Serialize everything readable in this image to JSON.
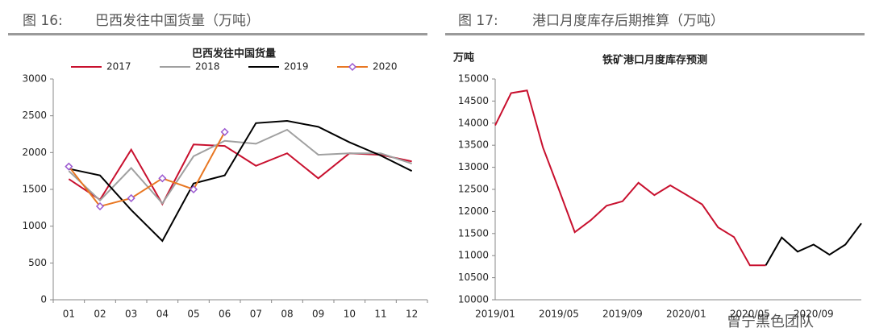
{
  "chart_data": [
    {
      "type": "line",
      "figure_label": "图 16:",
      "figure_title": "巴西发往中国货量（万吨）",
      "title": "巴西发往中国货量",
      "categories": [
        "01",
        "02",
        "03",
        "04",
        "05",
        "06",
        "07",
        "08",
        "09",
        "10",
        "11",
        "12"
      ],
      "series": [
        {
          "name": "2017",
          "color": "#c8102e",
          "values": [
            1640,
            1360,
            2040,
            1300,
            2110,
            2090,
            1820,
            1990,
            1650,
            1990,
            1970,
            1880
          ]
        },
        {
          "name": "2018",
          "color": "#a0a0a0",
          "values": [
            1750,
            1350,
            1790,
            1310,
            1950,
            2160,
            2120,
            2310,
            1970,
            1990,
            1990,
            1850
          ]
        },
        {
          "name": "2019",
          "color": "#000000",
          "values": [
            1780,
            1690,
            1220,
            800,
            1580,
            1690,
            2400,
            2430,
            2350,
            2140,
            1960,
            1750
          ]
        },
        {
          "name": "2020",
          "color": "#e87722",
          "marker_color": "#9b59d0",
          "values": [
            1810,
            1270,
            1380,
            1650,
            1500,
            2280,
            null,
            null,
            null,
            null,
            null,
            null
          ]
        }
      ],
      "ylim": [
        0,
        3000
      ],
      "yticks": [
        0,
        500,
        1000,
        1500,
        2000,
        2500,
        3000
      ],
      "legend": "top"
    },
    {
      "type": "line",
      "figure_label": "图 17:",
      "figure_title": "港口月度库存后期推算（万吨）",
      "title": "铁矿港口月度库存预测",
      "y_label": "万吨",
      "categories": [
        "2019/01",
        null,
        null,
        null,
        "2019/05",
        null,
        null,
        null,
        "2019/09",
        null,
        null,
        null,
        "2020/01",
        null,
        null,
        null,
        "2020/05",
        null,
        null,
        null,
        "2020/09",
        null,
        null,
        null
      ],
      "series": [
        {
          "color": "#c8102e",
          "values": [
            13950,
            14680,
            14740,
            13450,
            12500,
            11530,
            11800,
            12130,
            12230,
            12650,
            12370,
            12590,
            12380,
            12160,
            11640,
            11420,
            10780,
            10780,
            null,
            null,
            null,
            null,
            null,
            null
          ]
        },
        {
          "color": "#000000",
          "values": [
            null,
            null,
            null,
            null,
            null,
            null,
            null,
            null,
            null,
            null,
            null,
            null,
            null,
            null,
            null,
            null,
            null,
            10780,
            11410,
            11090,
            11250,
            11020,
            11250,
            11730
          ]
        }
      ],
      "ylim": [
        10000,
        15000
      ],
      "yticks": [
        10000,
        10500,
        11000,
        11500,
        12000,
        12500,
        13000,
        13500,
        14000,
        14500,
        15000
      ]
    }
  ],
  "watermark": "曾宁黑色团队"
}
